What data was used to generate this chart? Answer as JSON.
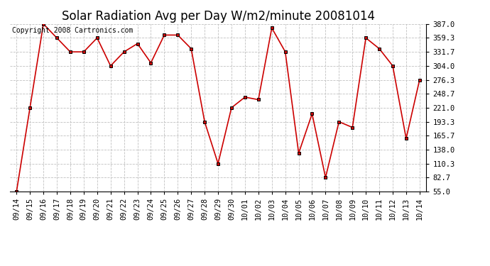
{
  "title": "Solar Radiation Avg per Day W/m2/minute 20081014",
  "copyright": "Copyright 2008 Cartronics.com",
  "dates": [
    "09/14",
    "09/15",
    "09/16",
    "09/17",
    "09/18",
    "09/19",
    "09/20",
    "09/21",
    "09/22",
    "09/23",
    "09/24",
    "09/25",
    "09/26",
    "09/27",
    "09/28",
    "09/29",
    "09/30",
    "10/01",
    "10/02",
    "10/03",
    "10/04",
    "10/05",
    "10/06",
    "10/07",
    "10/08",
    "10/09",
    "10/10",
    "10/11",
    "10/12",
    "10/13",
    "10/14"
  ],
  "values": [
    55.0,
    221.0,
    387.0,
    359.3,
    331.7,
    331.7,
    359.3,
    304.0,
    331.7,
    348.0,
    310.0,
    365.0,
    365.0,
    338.0,
    193.3,
    110.3,
    221.0,
    242.0,
    237.0,
    379.0,
    332.0,
    131.0,
    209.0,
    82.7,
    193.3,
    182.0,
    359.3,
    338.0,
    304.0,
    160.0,
    276.3
  ],
  "line_color": "#cc0000",
  "marker_color": "#000000",
  "bg_color": "#ffffff",
  "grid_color": "#c0c0c0",
  "ylim_min": 55.0,
  "ylim_max": 387.0,
  "yticks": [
    55.0,
    82.7,
    110.3,
    138.0,
    165.7,
    193.3,
    221.0,
    248.7,
    276.3,
    304.0,
    331.7,
    359.3,
    387.0
  ],
  "title_fontsize": 12,
  "tick_fontsize": 7.5,
  "copyright_fontsize": 7
}
